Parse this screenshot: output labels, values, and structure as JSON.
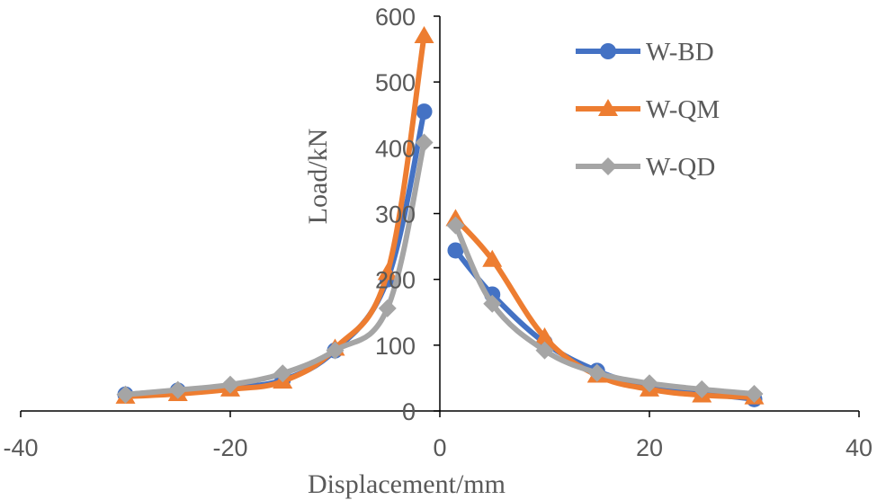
{
  "chart_data": {
    "type": "scatter",
    "title": "",
    "xlabel": "Displacement/mm",
    "ylabel": "Load/kN",
    "xlim": [
      -40,
      40
    ],
    "ylim": [
      0,
      600
    ],
    "x_ticks": [
      "-40",
      "-20",
      "0",
      "20",
      "40"
    ],
    "x_tick_values": [
      -40,
      -20,
      0,
      20,
      40
    ],
    "y_ticks": [
      "0",
      "100",
      "200",
      "300",
      "400",
      "500",
      "600"
    ],
    "y_tick_values": [
      0,
      100,
      200,
      300,
      400,
      500,
      600
    ],
    "grid": false,
    "legend_position": "top-right",
    "series": [
      {
        "name": "W-BD",
        "color": "#4472C4",
        "marker": "circle",
        "branches": [
          {
            "x": [
              -30,
              -25,
              -20,
              -15,
              -10,
              -5,
              -1.5
            ],
            "y": [
              25,
              31,
              36,
              47,
              92,
              200,
              455
            ]
          },
          {
            "x": [
              1.5,
              5,
              10,
              15,
              20,
              25,
              30
            ],
            "y": [
              244,
              177,
              104,
              61,
              37,
              27,
              18
            ]
          }
        ]
      },
      {
        "name": "W-QM",
        "color": "#ED7D31",
        "marker": "triangle",
        "branches": [
          {
            "x": [
              -30,
              -25,
              -20,
              -15,
              -10,
              -5,
              -1.5
            ],
            "y": [
              22,
              26,
              33,
              45,
              95,
              210,
              570
            ]
          },
          {
            "x": [
              1.5,
              5,
              10,
              15,
              20,
              25,
              30
            ],
            "y": [
              292,
              230,
              112,
              54,
              33,
              24,
              21
            ]
          }
        ]
      },
      {
        "name": "W-QD",
        "color": "#A5A5A5",
        "marker": "diamond",
        "branches": [
          {
            "x": [
              -30,
              -25,
              -20,
              -15,
              -10,
              -5,
              -1.5
            ],
            "y": [
              25,
              32,
              40,
              57,
              92,
              156,
              408
            ]
          },
          {
            "x": [
              1.5,
              5,
              10,
              15,
              20,
              25,
              30
            ],
            "y": [
              282,
              163,
              92,
              58,
              42,
              33,
              26
            ]
          }
        ]
      }
    ]
  }
}
